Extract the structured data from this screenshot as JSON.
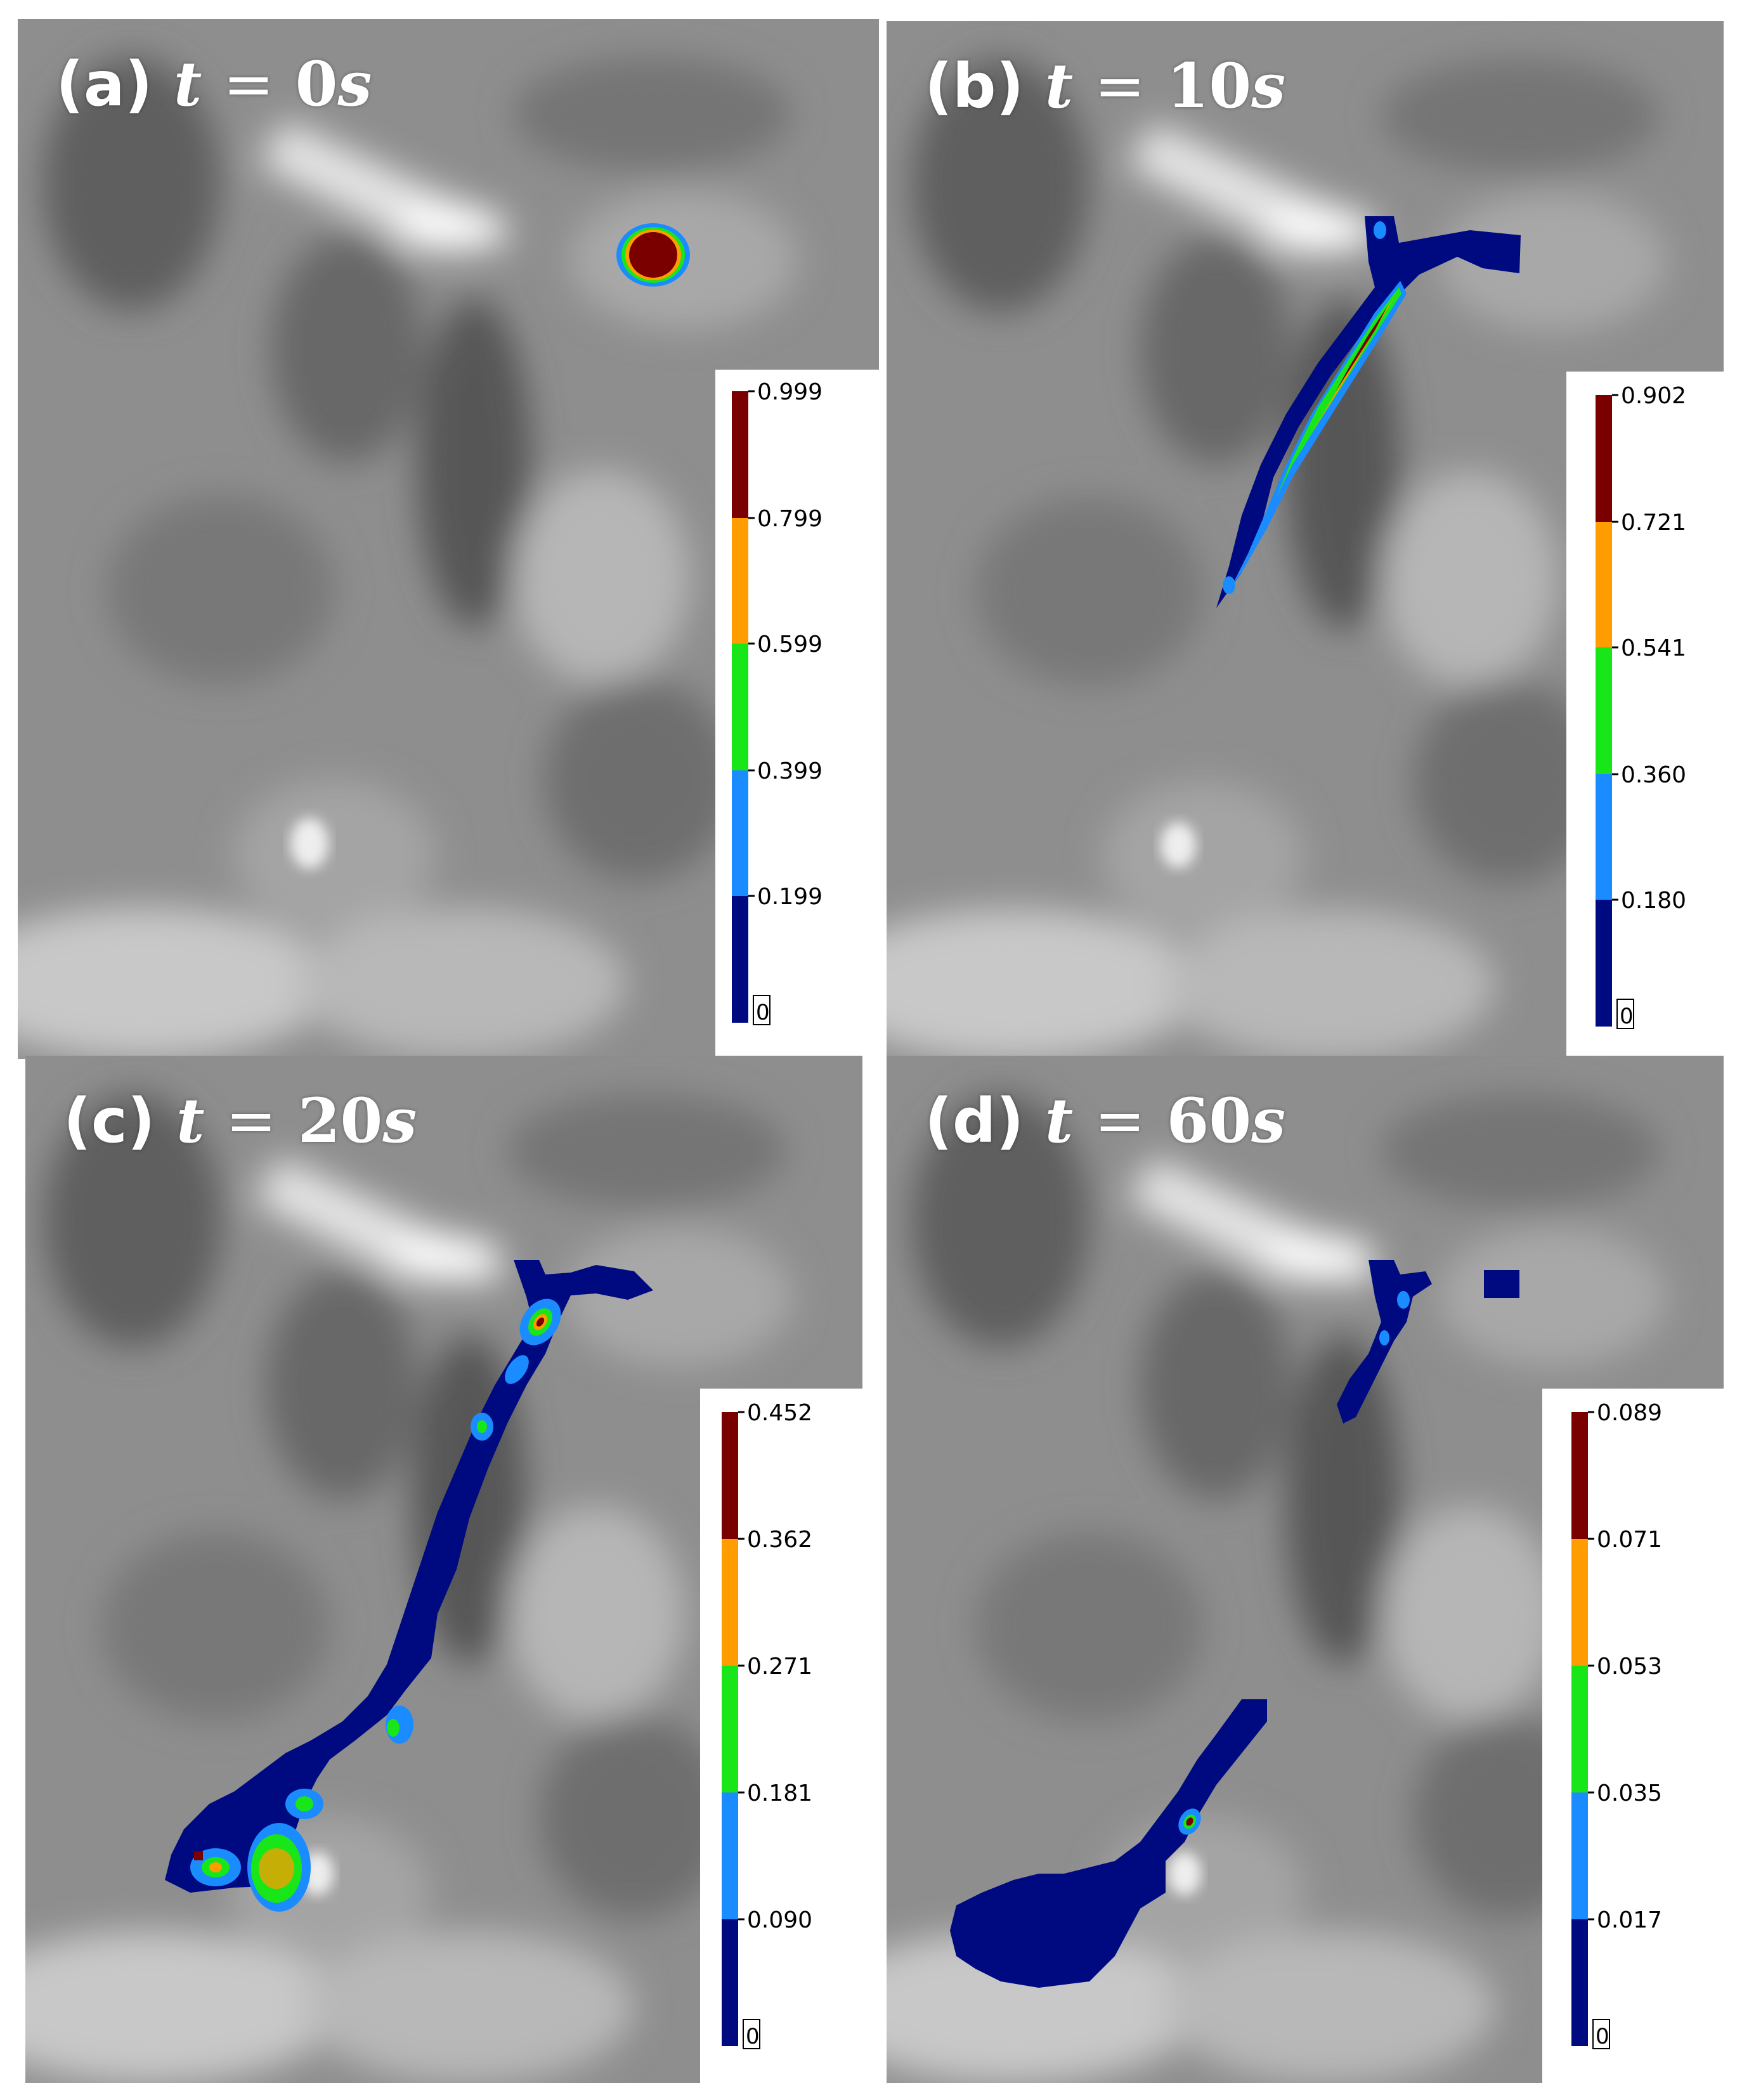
{
  "panels": [
    {
      "id": "a",
      "label_prefix": "(a)",
      "label_var": "t",
      "label_eq": "=",
      "label_value": "0",
      "label_unit": "s",
      "colorbar_ticks": [
        "0.999",
        "0.799",
        "0.599",
        "0.399",
        "0.199"
      ],
      "colorbar_zero": "0"
    },
    {
      "id": "b",
      "label_prefix": "(b)",
      "label_var": "t",
      "label_eq": "=",
      "label_value": "10",
      "label_unit": "s",
      "colorbar_ticks": [
        "0.902",
        "0.721",
        "0.541",
        "0.360",
        "0.180"
      ],
      "colorbar_zero": "0"
    },
    {
      "id": "c",
      "label_prefix": "(c)",
      "label_var": "t",
      "label_eq": "=",
      "label_value": "20",
      "label_unit": "s",
      "colorbar_ticks": [
        "0.452",
        "0.362",
        "0.271",
        "0.181",
        "0.090"
      ],
      "colorbar_zero": "0"
    },
    {
      "id": "d",
      "label_prefix": "(d)",
      "label_var": "t",
      "label_eq": "=",
      "label_value": "60",
      "label_unit": "s",
      "colorbar_ticks": [
        "0.089",
        "0.071",
        "0.053",
        "0.035",
        "0.017"
      ],
      "colorbar_zero": "0"
    }
  ],
  "colorbar_colors": [
    "#7a0000",
    "#ff9c00",
    "#19e619",
    "#1a8cff",
    "#000a80"
  ],
  "colors": {
    "terrain_base": "#8c8c8c",
    "terrain_dark": "#505050",
    "terrain_light": "#f4f4f4"
  }
}
